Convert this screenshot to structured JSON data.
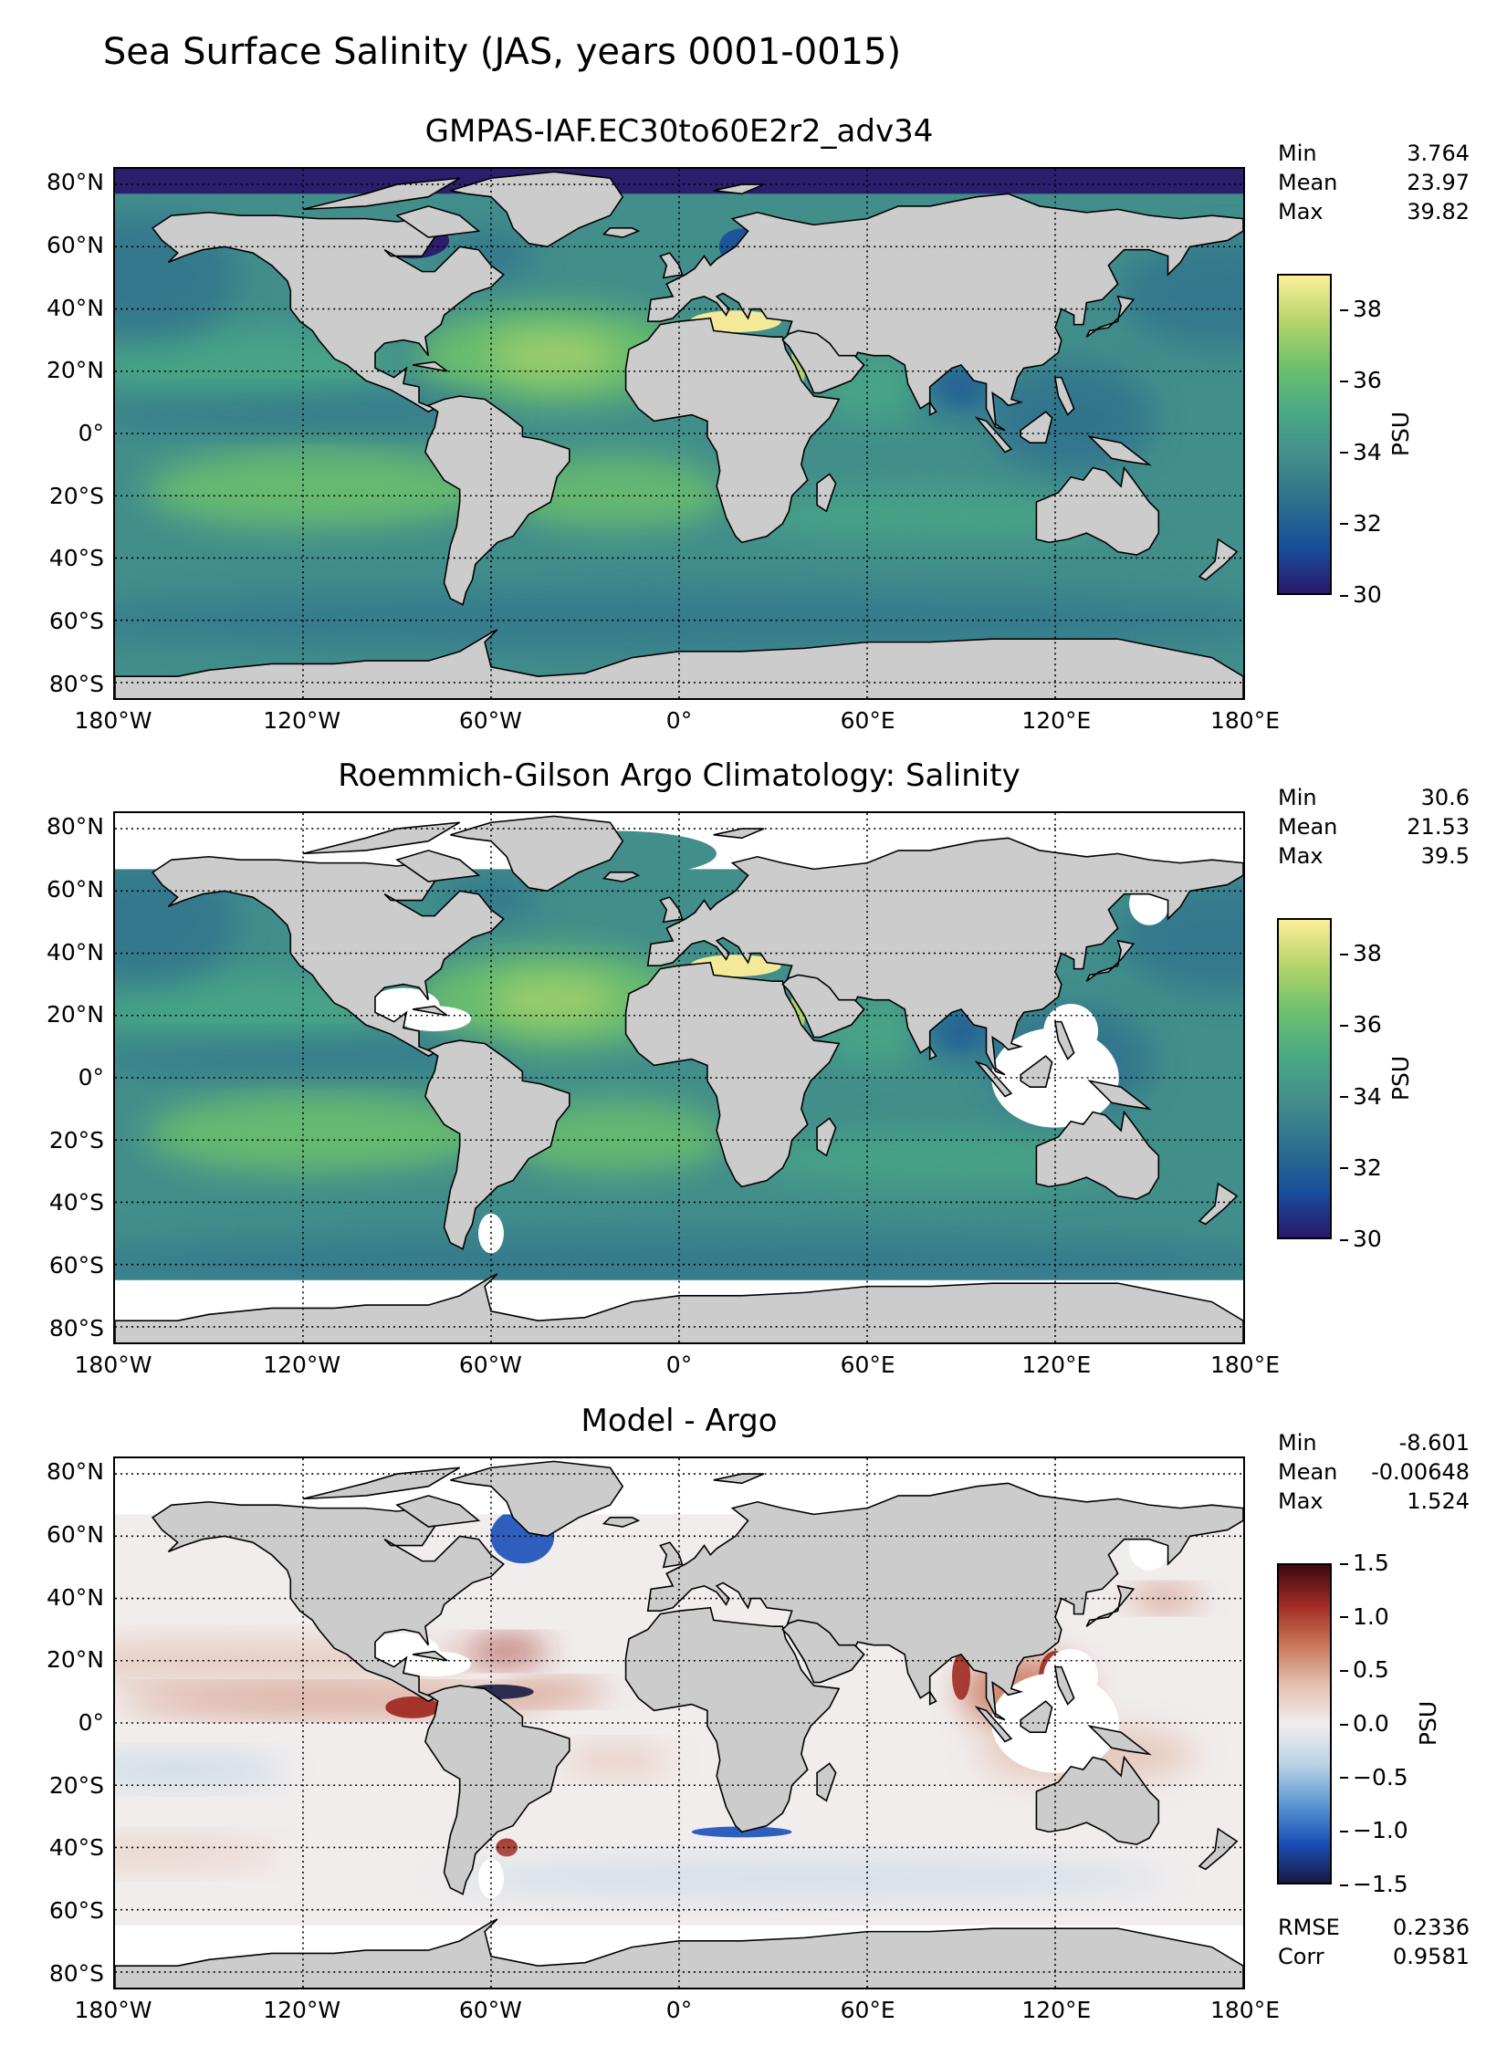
{
  "figure_title": "Sea Surface Salinity (JAS, years 0001-0015)",
  "colors": {
    "land": "#cccccc",
    "missing": "#ffffff",
    "haline": [
      "#2a186c",
      "#184e9b",
      "#2d6f8e",
      "#428e8b",
      "#4aa985",
      "#6dc16c",
      "#b5d56a",
      "#fdee99"
    ],
    "balance": [
      "#181c43",
      "#1a4fb8",
      "#5d9ad3",
      "#bcd3e6",
      "#f1eded",
      "#e3bfae",
      "#c87558",
      "#a02b24",
      "#3c0911"
    ]
  },
  "x_ticks": [
    "180°W",
    "120°W",
    "60°W",
    "0°",
    "60°E",
    "120°E",
    "180°E"
  ],
  "y_ticks": [
    "80°N",
    "60°N",
    "40°N",
    "20°N",
    "0°",
    "20°S",
    "40°S",
    "60°S",
    "80°S"
  ],
  "panels": [
    {
      "title": "GMPAS-IAF.EC30to60E2r2_adv34",
      "stats": [
        {
          "label": "Min",
          "value": "3.764"
        },
        {
          "label": "Mean",
          "value": "23.97"
        },
        {
          "label": "Max",
          "value": "39.82"
        }
      ],
      "colorbar": {
        "label": "PSU",
        "colormap": "haline",
        "range": [
          30,
          39
        ],
        "ticks": [
          "30",
          "32",
          "34",
          "36",
          "38"
        ]
      },
      "extra_stats": []
    },
    {
      "title": "Roemmich-Gilson Argo Climatology: Salinity",
      "stats": [
        {
          "label": "Min",
          "value": "30.6"
        },
        {
          "label": "Mean",
          "value": "21.53"
        },
        {
          "label": "Max",
          "value": "39.5"
        }
      ],
      "colorbar": {
        "label": "PSU",
        "colormap": "haline",
        "range": [
          30,
          39
        ],
        "ticks": [
          "30",
          "32",
          "34",
          "36",
          "38"
        ]
      },
      "extra_stats": []
    },
    {
      "title": "Model - Argo",
      "stats": [
        {
          "label": "Min",
          "value": "-8.601"
        },
        {
          "label": "Mean",
          "value": "-0.00648"
        },
        {
          "label": "Max",
          "value": "1.524"
        }
      ],
      "colorbar": {
        "label": "PSU",
        "colormap": "balance",
        "range": [
          -1.5,
          1.5
        ],
        "ticks": [
          "−1.5",
          "−1.0",
          "−0.5",
          "0.0",
          "0.5",
          "1.0",
          "1.5"
        ]
      },
      "extra_stats": [
        {
          "label": "RMSE",
          "value": "0.2336"
        },
        {
          "label": "Corr",
          "value": "0.9581"
        }
      ]
    }
  ]
}
